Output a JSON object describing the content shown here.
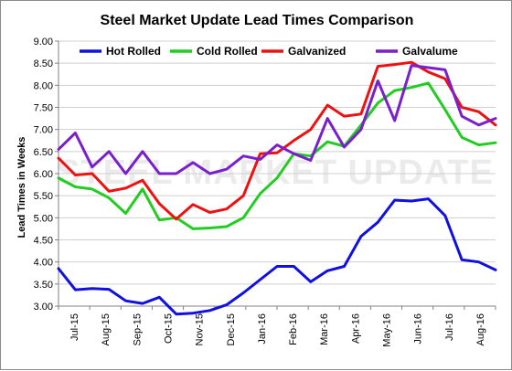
{
  "chart_data": {
    "type": "line",
    "title": "Steel Market Update Lead Times Comparison",
    "ylabel": "Lead Times in Weeks",
    "xlabel": "",
    "ylim": [
      3.0,
      9.0
    ],
    "yticks": [
      "3.00",
      "3.50",
      "4.00",
      "4.50",
      "5.00",
      "5.50",
      "6.00",
      "6.50",
      "7.00",
      "7.50",
      "8.00",
      "8.50",
      "9.00"
    ],
    "x_tick_labels": [
      "Jul-15",
      "Aug-15",
      "Sep-15",
      "Oct-15",
      "Nov-15",
      "Dec-15",
      "Jan-16",
      "Feb-16",
      "Mar-16",
      "Apr-16",
      "May-16",
      "Jun-16",
      "Jul-16",
      "Aug-16"
    ],
    "grid": true,
    "legend_position": "top",
    "watermark": "STEEL MARKET UPDATE",
    "series": [
      {
        "name": "Hot Rolled",
        "color": "#1010e0",
        "values": [
          3.85,
          3.37,
          3.4,
          3.38,
          3.12,
          3.06,
          3.2,
          2.82,
          2.84,
          2.9,
          3.03,
          3.3,
          3.6,
          3.9,
          3.9,
          3.55,
          3.8,
          3.9,
          4.58,
          4.9,
          5.4,
          5.38,
          5.43,
          5.05,
          4.05,
          4.0,
          3.82
        ]
      },
      {
        "name": "Cold Rolled",
        "color": "#22cc22",
        "values": [
          5.9,
          5.7,
          5.65,
          5.45,
          5.1,
          5.65,
          4.95,
          5.0,
          4.75,
          4.77,
          4.8,
          5.0,
          5.55,
          5.9,
          6.45,
          6.4,
          6.72,
          6.62,
          7.1,
          7.6,
          7.88,
          7.95,
          8.05,
          7.45,
          6.82,
          6.65,
          6.7
        ]
      },
      {
        "name": "Galvanized",
        "color": "#ee1111",
        "values": [
          6.35,
          5.97,
          6.0,
          5.6,
          5.67,
          5.85,
          5.32,
          4.97,
          5.3,
          5.12,
          5.2,
          5.5,
          6.45,
          6.47,
          6.75,
          7.0,
          7.55,
          7.3,
          7.35,
          8.43,
          8.47,
          8.52,
          8.3,
          8.15,
          7.5,
          7.4,
          7.1
        ]
      },
      {
        "name": "Galvalume",
        "color": "#7a1fcc",
        "values": [
          6.55,
          6.92,
          6.15,
          6.5,
          6.0,
          6.5,
          6.0,
          6.0,
          6.25,
          6.0,
          6.1,
          6.4,
          6.32,
          6.65,
          6.45,
          6.3,
          7.25,
          6.6,
          7.0,
          8.1,
          7.2,
          8.45,
          8.4,
          8.35,
          7.3,
          7.1,
          7.25
        ]
      }
    ]
  }
}
